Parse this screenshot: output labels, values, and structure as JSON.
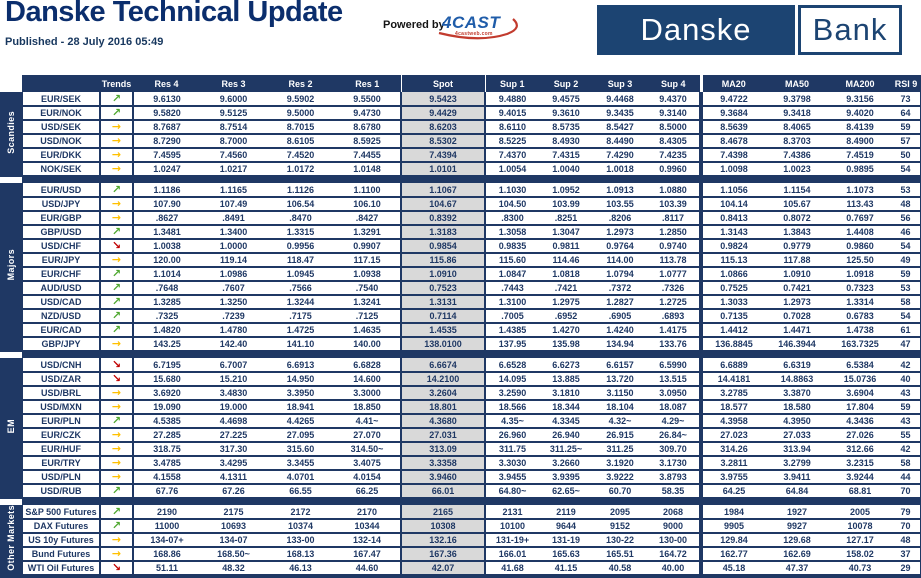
{
  "page": {
    "title": "Danske Technical Update",
    "published": "Published - 28 July 2016 05:49",
    "powered_by": "Powered by",
    "vendor_logo": {
      "name": "4CAST",
      "tagline": "4castweb.com"
    },
    "bank_logo": {
      "part1": "Danske",
      "part2": "Bank"
    }
  },
  "colors": {
    "navy": "#1F3864",
    "title_navy": "#0B2E6D",
    "spot_background": "#D9D9D9",
    "trend_up": "#4EA72E",
    "trend_flat": "#FFC000",
    "trend_down": "#C00000",
    "bank_logo_blue": "#1C4472",
    "vendor_blue": "#1F5CA9",
    "vendor_red": "#C23B2E"
  },
  "table": {
    "columns": [
      "Trends",
      "Res 4",
      "Res 3",
      "Res 2",
      "Res 1",
      "Spot",
      "Sup 1",
      "Sup 2",
      "Sup 3",
      "Sup 4",
      "MA20",
      "MA50",
      "MA200",
      "RSI 9"
    ],
    "value_keys": [
      "res4",
      "res3",
      "res2",
      "res1",
      "spot",
      "sup1",
      "sup2",
      "sup3",
      "sup4",
      "ma20",
      "ma50",
      "ma200",
      "rsi9"
    ],
    "trend_glyphs": {
      "up": "↗",
      "flat": "→",
      "down": "↘"
    },
    "trend_colors": {
      "up": "#4EA72E",
      "flat": "#FFC000",
      "down": "#C00000"
    },
    "groups": [
      {
        "label": "Scandies",
        "rows": [
          {
            "pair": "EUR/SEK",
            "trend": "up",
            "values": [
              "9.6130",
              "9.6000",
              "9.5902",
              "9.5500",
              "9.5423",
              "9.4880",
              "9.4575",
              "9.4468",
              "9.4370",
              "9.4722",
              "9.3798",
              "9.3156",
              "73"
            ]
          },
          {
            "pair": "EUR/NOK",
            "trend": "up",
            "values": [
              "9.5820",
              "9.5125",
              "9.5000",
              "9.4730",
              "9.4429",
              "9.4015",
              "9.3610",
              "9.3435",
              "9.3140",
              "9.3684",
              "9.3418",
              "9.4020",
              "64"
            ]
          },
          {
            "pair": "USD/SEK",
            "trend": "flat",
            "values": [
              "8.7687",
              "8.7514",
              "8.7015",
              "8.6780",
              "8.6203",
              "8.6110",
              "8.5735",
              "8.5427",
              "8.5000",
              "8.5639",
              "8.4065",
              "8.4139",
              "59"
            ]
          },
          {
            "pair": "USD/NOK",
            "trend": "flat",
            "values": [
              "8.7290",
              "8.7000",
              "8.6105",
              "8.5925",
              "8.5302",
              "8.5225",
              "8.4930",
              "8.4490",
              "8.4305",
              "8.4678",
              "8.3703",
              "8.4900",
              "57"
            ]
          },
          {
            "pair": "EUR/DKK",
            "trend": "flat",
            "values": [
              "7.4595",
              "7.4560",
              "7.4520",
              "7.4455",
              "7.4394",
              "7.4370",
              "7.4315",
              "7.4290",
              "7.4235",
              "7.4398",
              "7.4386",
              "7.4519",
              "50"
            ]
          },
          {
            "pair": "NOK/SEK",
            "trend": "flat",
            "values": [
              "1.0247",
              "1.0217",
              "1.0172",
              "1.0148",
              "1.0101",
              "1.0054",
              "1.0040",
              "1.0018",
              "0.9960",
              "1.0098",
              "1.0023",
              "0.9895",
              "54"
            ]
          }
        ]
      },
      {
        "label": "Majors",
        "rows": [
          {
            "pair": "EUR/USD",
            "trend": "up",
            "values": [
              "1.1186",
              "1.1165",
              "1.1126",
              "1.1100",
              "1.1067",
              "1.1030",
              "1.0952",
              "1.0913",
              "1.0880",
              "1.1056",
              "1.1154",
              "1.1073",
              "53"
            ]
          },
          {
            "pair": "USD/JPY",
            "trend": "flat",
            "values": [
              "107.90",
              "107.49",
              "106.54",
              "106.10",
              "104.67",
              "104.50",
              "103.99",
              "103.55",
              "103.39",
              "104.14",
              "105.67",
              "113.43",
              "48"
            ]
          },
          {
            "pair": "EUR/GBP",
            "trend": "flat",
            "values": [
              ".8627",
              ".8491",
              ".8470",
              ".8427",
              "0.8392",
              ".8300",
              ".8251",
              ".8206",
              ".8117",
              "0.8413",
              "0.8072",
              "0.7697",
              "56"
            ]
          },
          {
            "pair": "GBP/USD",
            "trend": "up",
            "values": [
              "1.3481",
              "1.3400",
              "1.3315",
              "1.3291",
              "1.3183",
              "1.3058",
              "1.3047",
              "1.2973",
              "1.2850",
              "1.3143",
              "1.3843",
              "1.4408",
              "46"
            ]
          },
          {
            "pair": "USD/CHF",
            "trend": "down",
            "values": [
              "1.0038",
              "1.0000",
              "0.9956",
              "0.9907",
              "0.9854",
              "0.9835",
              "0.9811",
              "0.9764",
              "0.9740",
              "0.9824",
              "0.9779",
              "0.9860",
              "54"
            ]
          },
          {
            "pair": "EUR/JPY",
            "trend": "flat",
            "values": [
              "120.00",
              "119.14",
              "118.47",
              "117.15",
              "115.86",
              "115.60",
              "114.46",
              "114.00",
              "113.78",
              "115.13",
              "117.88",
              "125.50",
              "49"
            ]
          },
          {
            "pair": "EUR/CHF",
            "trend": "up",
            "values": [
              "1.1014",
              "1.0986",
              "1.0945",
              "1.0938",
              "1.0910",
              "1.0847",
              "1.0818",
              "1.0794",
              "1.0777",
              "1.0866",
              "1.0910",
              "1.0918",
              "59"
            ]
          },
          {
            "pair": "AUD/USD",
            "trend": "up",
            "values": [
              ".7648",
              ".7607",
              ".7566",
              ".7540",
              "0.7523",
              ".7443",
              ".7421",
              ".7372",
              ".7326",
              "0.7525",
              "0.7421",
              "0.7323",
              "53"
            ]
          },
          {
            "pair": "USD/CAD",
            "trend": "up",
            "values": [
              "1.3285",
              "1.3250",
              "1.3244",
              "1.3241",
              "1.3131",
              "1.3100",
              "1.2975",
              "1.2827",
              "1.2725",
              "1.3033",
              "1.2973",
              "1.3314",
              "58"
            ]
          },
          {
            "pair": "NZD/USD",
            "trend": "up",
            "values": [
              ".7325",
              ".7239",
              ".7175",
              ".7125",
              "0.7114",
              ".7005",
              ".6952",
              ".6905",
              ".6893",
              "0.7135",
              "0.7028",
              "0.6783",
              "54"
            ]
          },
          {
            "pair": "EUR/CAD",
            "trend": "up",
            "values": [
              "1.4820",
              "1.4780",
              "1.4725",
              "1.4635",
              "1.4535",
              "1.4385",
              "1.4270",
              "1.4240",
              "1.4175",
              "1.4412",
              "1.4471",
              "1.4738",
              "61"
            ]
          },
          {
            "pair": "GBP/JPY",
            "trend": "flat",
            "values": [
              "143.25",
              "142.40",
              "141.10",
              "140.00",
              "138.0100",
              "137.95",
              "135.98",
              "134.94",
              "133.76",
              "136.8845",
              "146.3944",
              "163.7325",
              "47"
            ]
          }
        ]
      },
      {
        "label": "EM",
        "rows": [
          {
            "pair": "USD/CNH",
            "trend": "down",
            "values": [
              "6.7195",
              "6.7007",
              "6.6913",
              "6.6828",
              "6.6674",
              "6.6528",
              "6.6273",
              "6.6157",
              "6.5990",
              "6.6889",
              "6.6319",
              "6.5384",
              "42"
            ]
          },
          {
            "pair": "USD/ZAR",
            "trend": "down",
            "values": [
              "15.680",
              "15.210",
              "14.950",
              "14.600",
              "14.2100",
              "14.095",
              "13.885",
              "13.720",
              "13.515",
              "14.4181",
              "14.8863",
              "15.0736",
              "40"
            ]
          },
          {
            "pair": "USD/BRL",
            "trend": "flat",
            "values": [
              "3.6920",
              "3.4830",
              "3.3950",
              "3.3000",
              "3.2604",
              "3.2590",
              "3.1810",
              "3.1150",
              "3.0950",
              "3.2785",
              "3.3870",
              "3.6904",
              "43"
            ]
          },
          {
            "pair": "USD/MXN",
            "trend": "flat",
            "values": [
              "19.090",
              "19.000",
              "18.941",
              "18.850",
              "18.801",
              "18.566",
              "18.344",
              "18.104",
              "18.087",
              "18.577",
              "18.580",
              "17.804",
              "59"
            ]
          },
          {
            "pair": "EUR/PLN",
            "trend": "up",
            "values": [
              "4.5385",
              "4.4698",
              "4.4265",
              "4.41~",
              "4.3680",
              "4.35~",
              "4.3345",
              "4.32~",
              "4.29~",
              "4.3958",
              "4.3950",
              "4.3436",
              "43"
            ]
          },
          {
            "pair": "EUR/CZK",
            "trend": "flat",
            "values": [
              "27.285",
              "27.225",
              "27.095",
              "27.070",
              "27.031",
              "26.960",
              "26.940",
              "26.915",
              "26.84~",
              "27.023",
              "27.033",
              "27.026",
              "55"
            ]
          },
          {
            "pair": "EUR/HUF",
            "trend": "flat",
            "values": [
              "318.75",
              "317.30",
              "315.60",
              "314.50~",
              "313.09",
              "311.75",
              "311.25~",
              "311.25",
              "309.70",
              "314.26",
              "313.94",
              "312.66",
              "42"
            ]
          },
          {
            "pair": "EUR/TRY",
            "trend": "flat",
            "values": [
              "3.4785",
              "3.4295",
              "3.3455",
              "3.4075",
              "3.3358",
              "3.3030",
              "3.2660",
              "3.1920",
              "3.1730",
              "3.2811",
              "3.2799",
              "3.2315",
              "58"
            ]
          },
          {
            "pair": "USD/PLN",
            "trend": "flat",
            "values": [
              "4.1558",
              "4.1311",
              "4.0701",
              "4.0154",
              "3.9460",
              "3.9455",
              "3.9395",
              "3.9222",
              "3.8793",
              "3.9755",
              "3.9411",
              "3.9244",
              "44"
            ]
          },
          {
            "pair": "USD/RUB",
            "trend": "up",
            "values": [
              "67.76",
              "67.26",
              "66.55",
              "66.25",
              "66.01",
              "64.80~",
              "62.65~",
              "60.70",
              "58.35",
              "64.25",
              "64.84",
              "68.81",
              "70"
            ]
          }
        ]
      },
      {
        "label": "Other Markets",
        "rows": [
          {
            "pair": "S&P 500 Futures",
            "trend": "up",
            "values": [
              "2190",
              "2175",
              "2172",
              "2170",
              "2165",
              "2131",
              "2119",
              "2095",
              "2068",
              "1984",
              "1927",
              "2005",
              "79"
            ]
          },
          {
            "pair": "DAX Futures",
            "trend": "up",
            "values": [
              "11000",
              "10693",
              "10374",
              "10344",
              "10308",
              "10100",
              "9644",
              "9152",
              "9000",
              "9905",
              "9927",
              "10078",
              "70"
            ]
          },
          {
            "pair": "US 10y Futures",
            "trend": "flat",
            "values": [
              "134-07+",
              "134-07",
              "133-00",
              "132-14",
              "132.16",
              "131-19+",
              "131-19",
              "130-22",
              "130-00",
              "129.84",
              "129.68",
              "127.17",
              "48"
            ]
          },
          {
            "pair": "Bund Futures",
            "trend": "flat",
            "values": [
              "168.86",
              "168.50~",
              "168.13",
              "167.47",
              "167.36",
              "166.01",
              "165.63",
              "165.51",
              "164.72",
              "162.77",
              "162.69",
              "158.02",
              "37"
            ]
          },
          {
            "pair": "WTI Oil Futures",
            "trend": "down",
            "values": [
              "51.11",
              "48.32",
              "46.13",
              "44.60",
              "42.07",
              "41.68",
              "41.15",
              "40.58",
              "40.00",
              "45.18",
              "47.37",
              "40.73",
              "29"
            ]
          }
        ]
      }
    ]
  }
}
